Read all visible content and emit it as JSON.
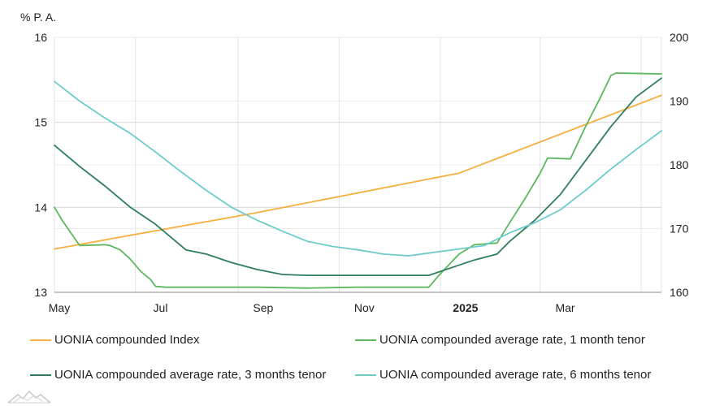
{
  "chart_data": {
    "type": "line",
    "left_axis": {
      "unit_label": "% P. A.",
      "min": 13,
      "max": 16,
      "ticks": [
        "13",
        "14",
        "15",
        "16"
      ]
    },
    "right_axis": {
      "min": 160,
      "max": 200,
      "ticks": [
        "160",
        "170",
        "180",
        "190",
        "200"
      ]
    },
    "x_axis": {
      "labels": [
        {
          "text": "May",
          "t": 0.0,
          "bold": false
        },
        {
          "text": "Jul",
          "t": 2.0,
          "bold": false
        },
        {
          "text": "Sep",
          "t": 4.03,
          "bold": false
        },
        {
          "text": "Nov",
          "t": 6.03,
          "bold": false
        },
        {
          "text": "2025",
          "t": 8.03,
          "bold": true
        },
        {
          "text": "Mar",
          "t": 10.0,
          "bold": false
        }
      ],
      "grid_months": [
        0,
        1.6,
        3.63,
        5.63,
        7.63,
        9.6,
        11.6
      ],
      "range": [
        0,
        12
      ]
    },
    "series": [
      {
        "name": "UONIA compounded Index",
        "axis": "right",
        "color": "#f5b041",
        "points": [
          [
            0,
            166.8
          ],
          [
            4.0,
            172.5
          ],
          [
            8.0,
            178.7
          ],
          [
            12.0,
            190.9
          ]
        ]
      },
      {
        "name": "UONIA compounded average rate, 1 month tenor",
        "axis": "left",
        "color": "#5cb85c",
        "points": [
          [
            0,
            14.0
          ],
          [
            0.15,
            13.85
          ],
          [
            0.3,
            13.72
          ],
          [
            0.5,
            13.55
          ],
          [
            1.0,
            13.56
          ],
          [
            1.1,
            13.55
          ],
          [
            1.3,
            13.5
          ],
          [
            1.5,
            13.39
          ],
          [
            1.7,
            13.25
          ],
          [
            1.9,
            13.15
          ],
          [
            2.0,
            13.07
          ],
          [
            2.2,
            13.06
          ],
          [
            4.0,
            13.06
          ],
          [
            5.0,
            13.05
          ],
          [
            6.0,
            13.06
          ],
          [
            7.0,
            13.06
          ],
          [
            7.4,
            13.06
          ],
          [
            7.6,
            13.2
          ],
          [
            8.0,
            13.45
          ],
          [
            8.3,
            13.56
          ],
          [
            8.75,
            13.58
          ],
          [
            9.0,
            13.82
          ],
          [
            9.3,
            14.1
          ],
          [
            9.6,
            14.4
          ],
          [
            9.75,
            14.58
          ],
          [
            10.2,
            14.57
          ],
          [
            10.5,
            14.95
          ],
          [
            10.8,
            15.3
          ],
          [
            11.0,
            15.55
          ],
          [
            11.1,
            15.58
          ],
          [
            12.0,
            15.57
          ]
        ]
      },
      {
        "name": "UONIA compounded average rate, 3 months tenor",
        "axis": "left",
        "color": "#2e7d5b",
        "points": [
          [
            0,
            14.73
          ],
          [
            0.5,
            14.48
          ],
          [
            1.0,
            14.25
          ],
          [
            1.5,
            14.0
          ],
          [
            2.0,
            13.8
          ],
          [
            2.6,
            13.5
          ],
          [
            3.0,
            13.45
          ],
          [
            3.5,
            13.35
          ],
          [
            4.0,
            13.27
          ],
          [
            4.5,
            13.21
          ],
          [
            5.0,
            13.2
          ],
          [
            6.0,
            13.2
          ],
          [
            7.0,
            13.2
          ],
          [
            7.4,
            13.2
          ],
          [
            7.8,
            13.28
          ],
          [
            8.3,
            13.38
          ],
          [
            8.75,
            13.45
          ],
          [
            9.0,
            13.6
          ],
          [
            9.5,
            13.85
          ],
          [
            10.0,
            14.15
          ],
          [
            10.5,
            14.55
          ],
          [
            11.0,
            14.95
          ],
          [
            11.5,
            15.3
          ],
          [
            12.0,
            15.52
          ]
        ]
      },
      {
        "name": "UONIA compounded average rate, 6 months tenor",
        "axis": "left",
        "color": "#6dccc9",
        "points": [
          [
            0,
            15.48
          ],
          [
            0.5,
            15.25
          ],
          [
            1.0,
            15.05
          ],
          [
            1.5,
            14.87
          ],
          [
            2.0,
            14.65
          ],
          [
            2.5,
            14.42
          ],
          [
            3.0,
            14.2
          ],
          [
            3.5,
            14.0
          ],
          [
            4.0,
            13.85
          ],
          [
            4.5,
            13.72
          ],
          [
            5.0,
            13.6
          ],
          [
            5.5,
            13.54
          ],
          [
            6.0,
            13.5
          ],
          [
            6.5,
            13.45
          ],
          [
            7.0,
            13.43
          ],
          [
            7.5,
            13.47
          ],
          [
            8.0,
            13.51
          ],
          [
            8.5,
            13.55
          ],
          [
            9.0,
            13.7
          ],
          [
            9.5,
            13.82
          ],
          [
            10.0,
            13.97
          ],
          [
            10.5,
            14.2
          ],
          [
            11.0,
            14.45
          ],
          [
            11.5,
            14.68
          ],
          [
            12.0,
            14.9
          ]
        ]
      }
    ]
  }
}
